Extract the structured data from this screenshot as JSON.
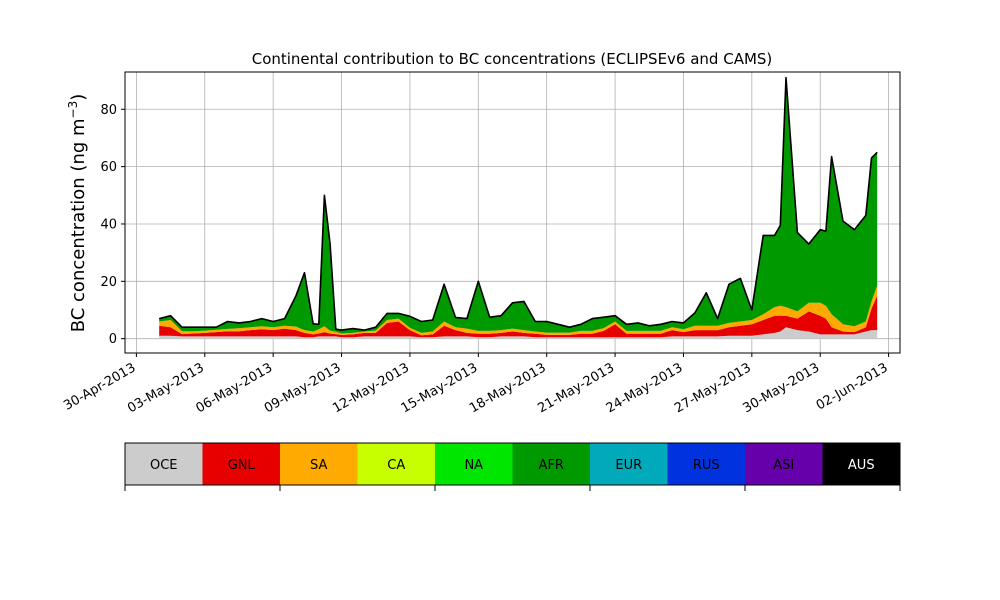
{
  "chart_data": {
    "type": "area",
    "title": "Continental contribution to BC concentrations (ECLIPSEv6 and CAMS)",
    "ylabel": "BC concentration (ng m",
    "ylabel_sup": "−3",
    "ylabel_close": ")",
    "xlabel": "",
    "xlim": [
      "2013-04-29T12:00",
      "2013-06-02T12:00"
    ],
    "ylim": [
      -5,
      93
    ],
    "grid": true,
    "stacked": true,
    "x_ticks": [
      "30-Apr-2013",
      "03-May-2013",
      "06-May-2013",
      "09-May-2013",
      "12-May-2013",
      "15-May-2013",
      "18-May-2013",
      "21-May-2013",
      "24-May-2013",
      "27-May-2013",
      "30-May-2013",
      "02-Jun-2013"
    ],
    "x_tick_dates": [
      "2013-04-30",
      "2013-05-03",
      "2013-05-06",
      "2013-05-09",
      "2013-05-12",
      "2013-05-15",
      "2013-05-18",
      "2013-05-21",
      "2013-05-24",
      "2013-05-27",
      "2013-05-30",
      "2013-06-02"
    ],
    "y_ticks": [
      0,
      20,
      40,
      60,
      80
    ],
    "x": [
      "2013-05-01T00:00",
      "2013-05-01T12:00",
      "2013-05-02T00:00",
      "2013-05-02T12:00",
      "2013-05-03T00:00",
      "2013-05-03T12:00",
      "2013-05-04T00:00",
      "2013-05-04T12:00",
      "2013-05-05T00:00",
      "2013-05-05T12:00",
      "2013-05-06T00:00",
      "2013-05-06T12:00",
      "2013-05-07T00:00",
      "2013-05-07T09:00",
      "2013-05-07T18:00",
      "2013-05-08T00:00",
      "2013-05-08T06:00",
      "2013-05-08T12:00",
      "2013-05-08T18:00",
      "2013-05-09T00:00",
      "2013-05-09T12:00",
      "2013-05-10T00:00",
      "2013-05-10T12:00",
      "2013-05-11T00:00",
      "2013-05-11T12:00",
      "2013-05-12T00:00",
      "2013-05-12T12:00",
      "2013-05-13T00:00",
      "2013-05-13T12:00",
      "2013-05-14T00:00",
      "2013-05-14T12:00",
      "2013-05-15T00:00",
      "2013-05-15T12:00",
      "2013-05-16T00:00",
      "2013-05-16T12:00",
      "2013-05-17T00:00",
      "2013-05-17T12:00",
      "2013-05-18T00:00",
      "2013-05-18T12:00",
      "2013-05-19T00:00",
      "2013-05-19T12:00",
      "2013-05-20T00:00",
      "2013-05-20T12:00",
      "2013-05-21T00:00",
      "2013-05-21T12:00",
      "2013-05-22T00:00",
      "2013-05-22T12:00",
      "2013-05-23T00:00",
      "2013-05-23T12:00",
      "2013-05-24T00:00",
      "2013-05-24T12:00",
      "2013-05-25T00:00",
      "2013-05-25T12:00",
      "2013-05-26T00:00",
      "2013-05-26T12:00",
      "2013-05-27T00:00",
      "2013-05-27T12:00",
      "2013-05-28T00:00",
      "2013-05-28T06:00",
      "2013-05-28T12:00",
      "2013-05-29T00:00",
      "2013-05-29T12:00",
      "2013-05-30T00:00",
      "2013-05-30T06:00",
      "2013-05-30T12:00",
      "2013-05-31T00:00",
      "2013-05-31T12:00",
      "2013-06-01T00:00",
      "2013-06-01T06:00",
      "2013-06-01T12:00"
    ],
    "series": [
      {
        "name": "OCE",
        "color": "#cccccc",
        "values": [
          1.0,
          1.0,
          0.8,
          0.8,
          0.8,
          0.8,
          0.8,
          0.8,
          0.8,
          0.8,
          0.8,
          0.8,
          0.8,
          0.5,
          0.5,
          0.8,
          0.8,
          0.8,
          0.8,
          0.5,
          0.5,
          0.8,
          0.8,
          0.8,
          0.8,
          0.8,
          0.5,
          0.5,
          0.8,
          0.8,
          0.8,
          0.5,
          0.5,
          0.8,
          0.8,
          0.8,
          0.5,
          0.5,
          0.5,
          0.5,
          0.5,
          0.5,
          0.5,
          0.5,
          0.5,
          0.5,
          0.5,
          0.5,
          0.8,
          0.8,
          0.8,
          0.8,
          0.8,
          1.0,
          1.0,
          1.0,
          1.5,
          2.0,
          2.5,
          4.0,
          3.0,
          2.5,
          1.5,
          1.5,
          1.5,
          1.5,
          1.5,
          2.5,
          3.0,
          3.0
        ]
      },
      {
        "name": "GNL",
        "color": "#e60000",
        "values": [
          3.5,
          3.0,
          0.8,
          1.0,
          1.2,
          1.5,
          1.8,
          1.8,
          2.2,
          2.5,
          2.2,
          2.7,
          2.2,
          1.5,
          1.0,
          1.0,
          1.5,
          1.0,
          0.8,
          0.8,
          1.0,
          1.2,
          1.2,
          4.7,
          5.2,
          2.2,
          0.7,
          1.0,
          3.7,
          2.2,
          1.2,
          1.2,
          1.2,
          1.2,
          1.7,
          1.2,
          1.2,
          0.8,
          0.8,
          0.8,
          1.2,
          1.2,
          2.2,
          4.5,
          1.2,
          1.2,
          1.2,
          1.2,
          2.2,
          1.5,
          2.2,
          2.2,
          2.2,
          3.0,
          3.5,
          4.0,
          5.0,
          6.0,
          5.5,
          4.0,
          4.0,
          7.0,
          6.5,
          5.5,
          2.5,
          1.0,
          0.8,
          1.5,
          7.5,
          12.0
        ]
      },
      {
        "name": "SA",
        "color": "#ffaa00",
        "values": [
          1.5,
          2.5,
          1.0,
          0.8,
          0.8,
          0.8,
          0.8,
          1.0,
          1.0,
          1.0,
          1.0,
          1.0,
          1.2,
          1.0,
          1.0,
          1.5,
          2.0,
          1.0,
          0.8,
          0.5,
          0.5,
          0.5,
          0.8,
          1.0,
          1.0,
          0.8,
          0.8,
          1.0,
          1.5,
          1.0,
          1.5,
          1.0,
          1.0,
          1.0,
          1.0,
          1.0,
          0.8,
          0.8,
          0.8,
          0.8,
          1.0,
          1.0,
          1.0,
          1.0,
          1.0,
          1.0,
          1.0,
          1.0,
          1.0,
          1.0,
          1.5,
          1.5,
          1.5,
          1.5,
          1.5,
          1.5,
          2.0,
          3.0,
          3.5,
          3.0,
          2.5,
          3.0,
          4.5,
          4.5,
          4.5,
          2.5,
          2.0,
          2.0,
          2.5,
          3.5
        ]
      },
      {
        "name": "CA",
        "color": "#c8ff00",
        "values": [
          0,
          0,
          0,
          0,
          0,
          0,
          0,
          0,
          0,
          0,
          0,
          0,
          0,
          0,
          0,
          0,
          0,
          0,
          0,
          0,
          0,
          0,
          0,
          0,
          0,
          0,
          0,
          0,
          0,
          0,
          0,
          0,
          0,
          0,
          0,
          0,
          0,
          0,
          0,
          0,
          0,
          0,
          0,
          0,
          0,
          0,
          0,
          0,
          0,
          0,
          0,
          0,
          0,
          0,
          0,
          0,
          0,
          0,
          0,
          0,
          0,
          0,
          0,
          0,
          0,
          0,
          0,
          0,
          0,
          0
        ]
      },
      {
        "name": "NA",
        "color": "#00e600",
        "values": [
          0,
          0,
          0,
          0,
          0,
          0,
          0,
          0,
          0,
          0,
          0,
          0,
          0,
          0,
          0,
          0,
          0,
          0,
          0,
          0,
          0,
          0,
          0,
          0,
          0,
          0,
          0,
          0,
          0,
          0,
          0,
          0,
          0,
          0,
          0,
          0,
          0,
          0,
          0,
          0,
          0,
          0,
          0,
          0,
          0,
          0,
          0,
          0,
          0,
          0,
          0,
          0,
          0,
          0,
          0,
          0,
          0,
          0,
          0,
          0,
          0,
          0,
          0,
          0,
          0,
          0,
          0,
          0,
          0,
          0
        ]
      },
      {
        "name": "AFR",
        "color": "#009900",
        "values": [
          1.0,
          1.5,
          1.4,
          1.4,
          1.2,
          0.9,
          2.6,
          1.9,
          2.0,
          2.7,
          2.0,
          2.5,
          10.8,
          20.0,
          2.7,
          1.7,
          45.7,
          30.2,
          0.9,
          1.2,
          1.5,
          0.5,
          1.2,
          2.3,
          1.8,
          4.0,
          4.0,
          4.0,
          13.0,
          3.4,
          3.5,
          17.3,
          4.8,
          5.0,
          9.0,
          10.0,
          3.5,
          3.9,
          2.9,
          1.9,
          2.3,
          4.3,
          3.8,
          2.0,
          2.3,
          2.8,
          1.8,
          2.3,
          2.0,
          2.2,
          4.5,
          11.5,
          2.5,
          13.5,
          15.0,
          3.5,
          27.5,
          25.0,
          28.0,
          80.0,
          27.5,
          20.5,
          25.5,
          26.0,
          55.0,
          36.0,
          33.7,
          37.0,
          50.0,
          46.5
        ]
      },
      {
        "name": "EUR",
        "color": "#00aabb",
        "values": [
          0,
          0,
          0,
          0,
          0,
          0,
          0,
          0,
          0,
          0,
          0,
          0,
          0,
          0,
          0,
          0,
          0,
          0,
          0,
          0,
          0,
          0,
          0,
          0,
          0,
          0,
          0,
          0,
          0,
          0,
          0,
          0,
          0,
          0,
          0,
          0,
          0,
          0,
          0,
          0,
          0,
          0,
          0,
          0,
          0,
          0,
          0,
          0,
          0,
          0,
          0,
          0,
          0,
          0,
          0,
          0,
          0,
          0,
          0,
          0,
          0,
          0,
          0,
          0,
          0,
          0,
          0,
          0,
          0,
          0
        ]
      },
      {
        "name": "RUS",
        "color": "#0033dd",
        "values": [
          0,
          0,
          0,
          0,
          0,
          0,
          0,
          0,
          0,
          0,
          0,
          0,
          0,
          0,
          0,
          0,
          0,
          0,
          0,
          0,
          0,
          0,
          0,
          0,
          0,
          0,
          0,
          0,
          0,
          0,
          0,
          0,
          0,
          0,
          0,
          0,
          0,
          0,
          0,
          0,
          0,
          0,
          0,
          0,
          0,
          0,
          0,
          0,
          0,
          0,
          0,
          0,
          0,
          0,
          0,
          0,
          0,
          0,
          0,
          0,
          0,
          0,
          0,
          0,
          0,
          0,
          0,
          0,
          0,
          0
        ]
      },
      {
        "name": "ASI",
        "color": "#6600aa",
        "values": [
          0,
          0,
          0,
          0,
          0,
          0,
          0,
          0,
          0,
          0,
          0,
          0,
          0,
          0,
          0,
          0,
          0,
          0,
          0,
          0,
          0,
          0,
          0,
          0,
          0,
          0,
          0,
          0,
          0,
          0,
          0,
          0,
          0,
          0,
          0,
          0,
          0,
          0,
          0,
          0,
          0,
          0,
          0,
          0,
          0,
          0,
          0,
          0,
          0,
          0,
          0,
          0,
          0,
          0,
          0,
          0,
          0,
          0,
          0,
          0,
          0,
          0,
          0,
          0,
          0,
          0,
          0,
          0,
          0,
          0
        ]
      },
      {
        "name": "AUS",
        "color": "#000000",
        "values": [
          0,
          0,
          0,
          0,
          0,
          0,
          0,
          0,
          0,
          0,
          0,
          0,
          0,
          0,
          0,
          0,
          0,
          0,
          0,
          0,
          0,
          0,
          0,
          0,
          0,
          0,
          0,
          0,
          0,
          0,
          0,
          0,
          0,
          0,
          0,
          0,
          0,
          0,
          0,
          0,
          0,
          0,
          0,
          0,
          0,
          0,
          0,
          0,
          0,
          0,
          0,
          0,
          0,
          0,
          0,
          0,
          0,
          0,
          0,
          0,
          0,
          0,
          0,
          0,
          0,
          0,
          0,
          0,
          0,
          0
        ]
      }
    ],
    "legend": {
      "placement": "bottom",
      "labels": [
        "OCE",
        "GNL",
        "SA",
        "CA",
        "NA",
        "AFR",
        "EUR",
        "RUS",
        "ASI",
        "AUS"
      ],
      "text_colors": [
        "#000000",
        "#000000",
        "#000000",
        "#000000",
        "#000000",
        "#000000",
        "#000000",
        "#000000",
        "#000000",
        "#ffffff"
      ]
    }
  }
}
